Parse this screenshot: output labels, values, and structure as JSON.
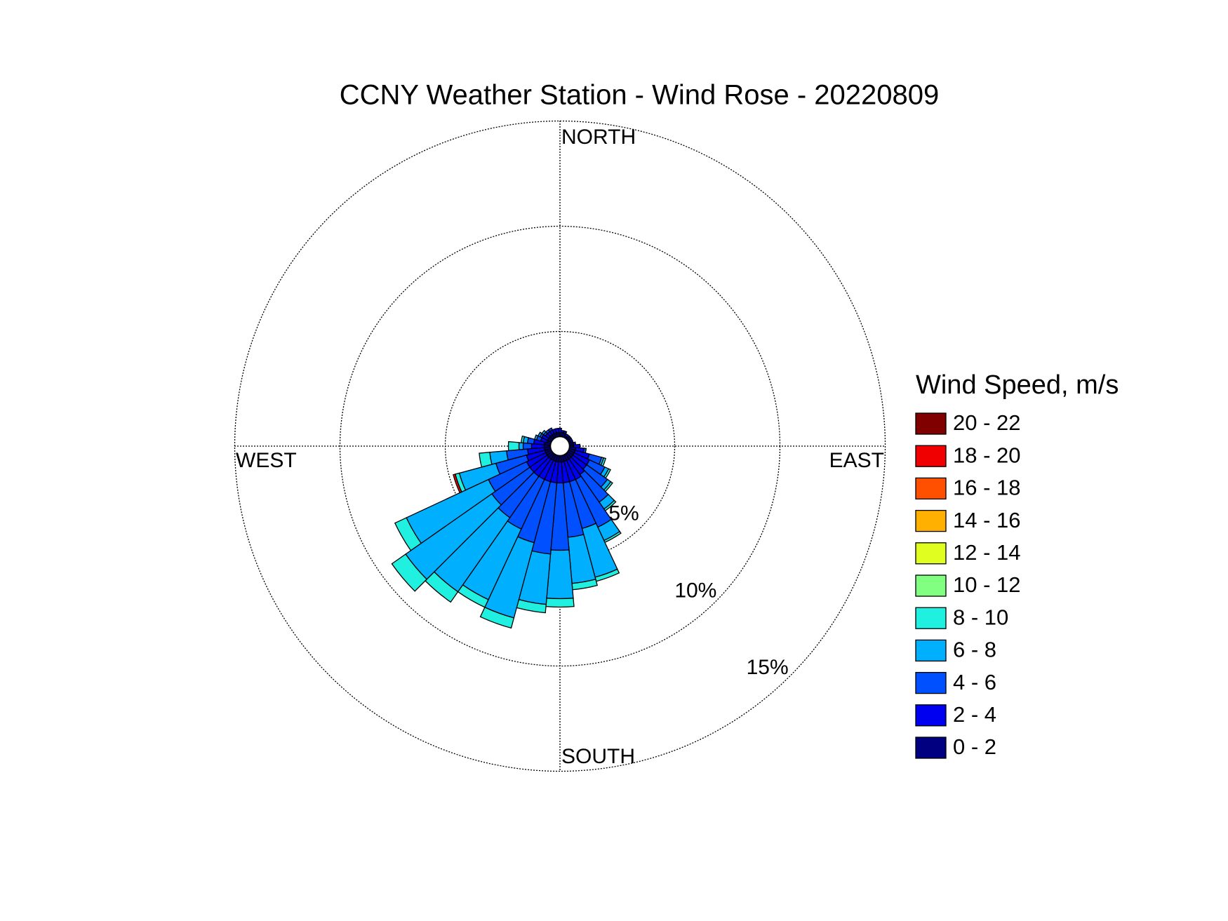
{
  "chart_data": {
    "type": "windrose",
    "title": "CCNY Weather Station - Wind Rose - 20220809",
    "compass": {
      "north": "NORTH",
      "east": "EAST",
      "south": "SOUTH",
      "west": "WEST"
    },
    "legend_title": "Wind Speed, m/s",
    "directions": [
      0,
      10,
      20,
      30,
      40,
      50,
      60,
      70,
      80,
      90,
      100,
      110,
      120,
      130,
      140,
      150,
      160,
      170,
      180,
      190,
      200,
      210,
      220,
      230,
      240,
      250,
      260,
      270,
      280,
      290,
      300,
      310,
      320,
      330,
      340,
      350
    ],
    "rlim": [
      0,
      15
    ],
    "rticks": [
      {
        "value": 5,
        "label": "5%"
      },
      {
        "value": 10,
        "label": "10%"
      },
      {
        "value": 15,
        "label": "15%"
      }
    ],
    "series": [
      {
        "name": "0 - 2",
        "color": "#000080",
        "values": [
          0.2,
          0.2,
          0.2,
          0.1,
          0.1,
          0.1,
          0.1,
          0.1,
          0.2,
          0.2,
          0.3,
          0.3,
          0.3,
          0.3,
          0.3,
          0.3,
          0.3,
          0.3,
          0.3,
          0.3,
          0.3,
          0.3,
          0.3,
          0.3,
          0.3,
          0.3,
          0.3,
          0.3,
          0.3,
          0.2,
          0.2,
          0.2,
          0.2,
          0.2,
          0.2,
          0.2
        ]
      },
      {
        "name": "2 - 4",
        "color": "#0000f0",
        "values": [
          0.2,
          0.1,
          0.1,
          0.1,
          0.1,
          0.1,
          0.1,
          0.1,
          0.1,
          0.3,
          0.4,
          0.7,
          0.8,
          0.8,
          0.9,
          1.0,
          1.0,
          1.0,
          1.0,
          1.0,
          1.0,
          1.0,
          1.0,
          1.0,
          1.0,
          0.9,
          0.8,
          0.6,
          0.5,
          0.3,
          0.3,
          0.2,
          0.2,
          0.2,
          0.2,
          0.2
        ]
      },
      {
        "name": "4 - 6",
        "color": "#0050ff",
        "values": [
          0,
          0,
          0,
          0,
          0,
          0,
          0,
          0,
          0,
          0,
          0.1,
          0.6,
          0.8,
          1.2,
          1.6,
          2.5,
          2.3,
          2.6,
          3.2,
          3.4,
          3.0,
          2.6,
          2.4,
          2.2,
          2.0,
          1.5,
          1.0,
          0.4,
          0.3,
          0.2,
          0.1,
          0.1,
          0.1,
          0.1,
          0,
          0
        ]
      },
      {
        "name": "6 - 8",
        "color": "#00b0ff",
        "values": [
          0,
          0,
          0,
          0,
          0,
          0,
          0,
          0,
          0,
          0,
          0,
          0.1,
          0.2,
          0.2,
          0.4,
          0.7,
          2.4,
          2.2,
          2.3,
          2.4,
          3.7,
          3.7,
          4.3,
          5.0,
          4.3,
          1.8,
          0.8,
          0.2,
          0.2,
          0.1,
          0.1,
          0.1,
          0,
          0,
          0,
          0
        ]
      },
      {
        "name": "8 - 10",
        "color": "#20f0e0",
        "values": [
          0,
          0,
          0,
          0,
          0,
          0,
          0,
          0,
          0,
          0,
          0,
          0.1,
          0.1,
          0.1,
          0.1,
          0.1,
          0.2,
          0.3,
          0.4,
          0.4,
          0.5,
          0.4,
          0.6,
          0.8,
          0.6,
          0.2,
          0.5,
          0.5,
          0.1,
          0,
          0,
          0,
          0,
          0,
          0,
          0
        ]
      },
      {
        "name": "10 - 12",
        "color": "#80ff80",
        "values": [
          0,
          0,
          0,
          0,
          0,
          0,
          0,
          0,
          0,
          0,
          0,
          0,
          0,
          0,
          0,
          0,
          0,
          0,
          0,
          0,
          0,
          0,
          0,
          0,
          0,
          0,
          0,
          0,
          0,
          0,
          0,
          0,
          0,
          0,
          0,
          0
        ]
      },
      {
        "name": "12 - 14",
        "color": "#e0ff20",
        "values": [
          0,
          0,
          0,
          0,
          0,
          0,
          0,
          0,
          0,
          0,
          0,
          0,
          0,
          0,
          0,
          0,
          0,
          0,
          0,
          0,
          0,
          0,
          0,
          0,
          0,
          0,
          0,
          0,
          0,
          0,
          0,
          0,
          0,
          0,
          0,
          0
        ]
      },
      {
        "name": "14 - 16",
        "color": "#ffb000",
        "values": [
          0,
          0,
          0,
          0,
          0,
          0,
          0,
          0,
          0,
          0,
          0,
          0,
          0,
          0,
          0,
          0,
          0,
          0,
          0,
          0,
          0,
          0,
          0,
          0,
          0,
          0,
          0,
          0,
          0,
          0,
          0,
          0,
          0,
          0,
          0,
          0
        ]
      },
      {
        "name": "16 - 18",
        "color": "#ff5000",
        "values": [
          0,
          0,
          0,
          0,
          0,
          0,
          0,
          0,
          0,
          0,
          0,
          0,
          0,
          0,
          0,
          0,
          0,
          0,
          0,
          0,
          0,
          0,
          0,
          0,
          0,
          0,
          0,
          0,
          0,
          0,
          0,
          0,
          0,
          0,
          0,
          0
        ]
      },
      {
        "name": "18 - 20",
        "color": "#f00000",
        "values": [
          0,
          0,
          0,
          0,
          0,
          0,
          0,
          0,
          0,
          0,
          0,
          0,
          0,
          0,
          0,
          0,
          0,
          0,
          0,
          0,
          0,
          0,
          0,
          0,
          0,
          0.1,
          0,
          0,
          0,
          0,
          0,
          0,
          0,
          0,
          0,
          0
        ]
      },
      {
        "name": "20 - 22",
        "color": "#800000",
        "values": [
          0,
          0,
          0,
          0,
          0,
          0,
          0,
          0,
          0,
          0,
          0,
          0,
          0,
          0,
          0,
          0,
          0,
          0,
          0,
          0,
          0,
          0,
          0,
          0,
          0,
          0,
          0,
          0,
          0,
          0,
          0,
          0,
          0,
          0,
          0,
          0
        ]
      }
    ]
  }
}
